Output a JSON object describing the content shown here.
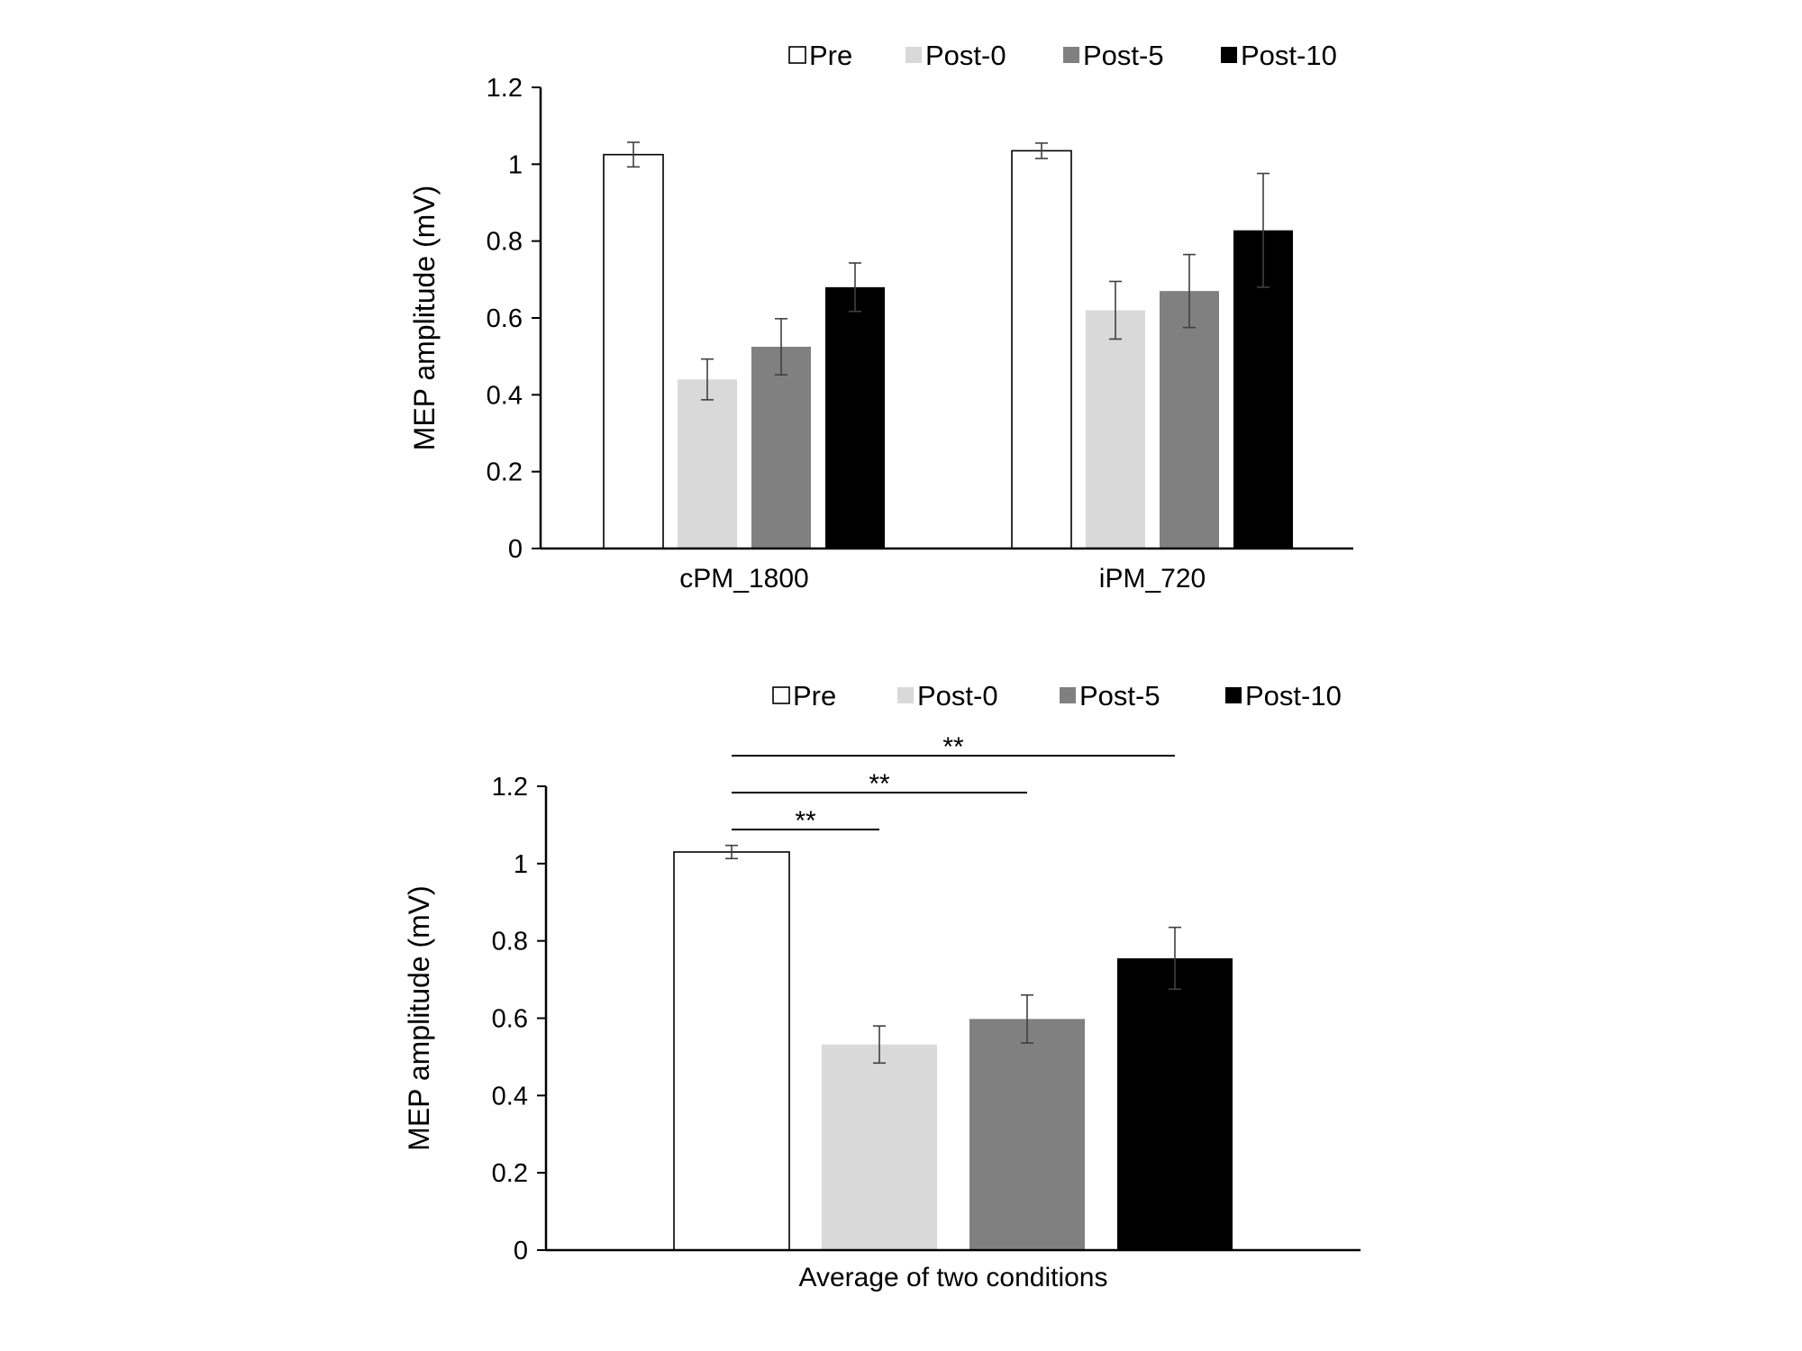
{
  "colors": {
    "Pre": "#ffffff",
    "Post-0": "#d9d9d9",
    "Post-5": "#808080",
    "Post-10": "#000000"
  },
  "chart_data": [
    {
      "type": "bar",
      "title": "",
      "xlabel": "",
      "ylabel": "MEP amplitude  (mV)",
      "ylim": [
        0,
        1.2
      ],
      "yticks": [
        "0",
        "0.2",
        "0.4",
        "0.6",
        "0.8",
        "1",
        "1.2"
      ],
      "categories": [
        "cPM_1800",
        "iPM_720"
      ],
      "legend": [
        "Pre",
        "Post-0",
        "Post-5",
        "Post-10"
      ],
      "legend_position": "top",
      "grid": false,
      "series": [
        {
          "name": "Pre",
          "values": [
            1.025,
            1.035
          ],
          "errors": [
            0.032,
            0.02
          ]
        },
        {
          "name": "Post-0",
          "values": [
            0.44,
            0.62
          ],
          "errors": [
            0.053,
            0.075
          ]
        },
        {
          "name": "Post-5",
          "values": [
            0.525,
            0.67
          ],
          "errors": [
            0.073,
            0.095
          ]
        },
        {
          "name": "Post-10",
          "values": [
            0.68,
            0.828
          ],
          "errors": [
            0.063,
            0.148
          ]
        }
      ]
    },
    {
      "type": "bar",
      "title": "",
      "xlabel": "",
      "ylabel": "MEP amplitude  (mV)",
      "ylim": [
        0,
        1.2
      ],
      "yticks": [
        "0",
        "0.2",
        "0.4",
        "0.6",
        "0.8",
        "1",
        "1.2"
      ],
      "categories": [
        "Average of two conditions"
      ],
      "legend": [
        "Pre",
        "Post-0",
        "Post-5",
        "Post-10"
      ],
      "legend_position": "top",
      "grid": false,
      "series": [
        {
          "name": "Pre",
          "values": [
            1.03
          ],
          "errors": [
            0.017
          ]
        },
        {
          "name": "Post-0",
          "values": [
            0.532
          ],
          "errors": [
            0.048
          ]
        },
        {
          "name": "Post-5",
          "values": [
            0.598
          ],
          "errors": [
            0.062
          ]
        },
        {
          "name": "Post-10",
          "values": [
            0.755
          ],
          "errors": [
            0.08
          ]
        }
      ],
      "significance": [
        {
          "from": "Pre",
          "to": "Post-0",
          "label": "**"
        },
        {
          "from": "Pre",
          "to": "Post-5",
          "label": "**"
        },
        {
          "from": "Pre",
          "to": "Post-10",
          "label": "**"
        }
      ]
    }
  ]
}
